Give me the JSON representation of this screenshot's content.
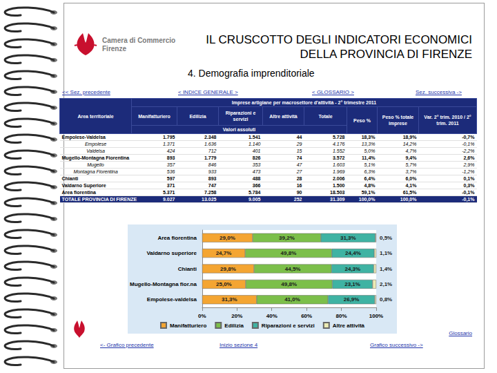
{
  "header": {
    "logo": [
      "Camera di Commercio",
      "Firenze"
    ],
    "title": [
      "IL CRUSCOTTO DEGLI INDICATORI ECONOMICI",
      "DELLA PROVINCIA DI FIRENZE"
    ],
    "subtitle": "4. Demografia imprenditoriale"
  },
  "nav": [
    "<< Sez. precedente",
    "< INDICE GENERALE >",
    "< GLOSSARIO >",
    "Sez. successiva ->"
  ],
  "table": {
    "title": "Imprese artigiane per macrosettore d'attività - 2° trimestre 2011",
    "group_label": "Valori assoluti",
    "columns": [
      "Area territoriale",
      "Manifatturiero",
      "Edilizia",
      "Riparazioni e servizi",
      "Altre attività",
      "Totale",
      "Peso %",
      "Peso % totale imprese",
      "Var. 2° trim. 2010 / 2° trim. 2011"
    ],
    "rows": [
      {
        "cells": [
          "Empolese-Valdelsa",
          "1.795",
          "2.348",
          "1.541",
          "44",
          "5.728",
          "18,3%",
          "18,9%",
          "-0,7%"
        ],
        "parts": [
          {
            "cells": [
              "Empolese",
              "1.371",
              "1.636",
              "1.140",
              "29",
              "4.176",
              "13,3%",
              "14,2%",
              "-0,1%"
            ]
          },
          {
            "cells": [
              "Valdelsa",
              "424",
              "712",
              "401",
              "15",
              "1.552",
              "5,0%",
              "4,7%",
              "-2,2%"
            ]
          }
        ]
      },
      {
        "cells": [
          "Mugello-Montagna Fiorentina",
          "893",
          "1.779",
          "826",
          "74",
          "3.572",
          "11,4%",
          "9,4%",
          "2,6%"
        ],
        "parts": [
          {
            "cells": [
              "Mugello",
              "357",
              "846",
              "353",
              "47",
              "1.603",
              "5,1%",
              "5,7%",
              "2,9%"
            ]
          },
          {
            "cells": [
              "Montagna Fiorentina",
              "536",
              "933",
              "473",
              "27",
              "1.969",
              "6,3%",
              "3,7%",
              "-1,2%"
            ]
          }
        ]
      },
      {
        "cells": [
          "Chianti",
          "597",
          "893",
          "488",
          "28",
          "2.006",
          "6,4%",
          "6,0%",
          "0,1%"
        ]
      },
      {
        "cells": [
          "Valdarno Superiore",
          "371",
          "747",
          "366",
          "16",
          "1.500",
          "4,8%",
          "4,1%",
          "0,3%"
        ]
      },
      {
        "cells": [
          "Area fiorentina",
          "5.371",
          "7.258",
          "5.784",
          "90",
          "18.503",
          "59,1%",
          "61,5%",
          "-0,1%"
        ]
      }
    ],
    "total": {
      "cells": [
        "TOTALE PROVINCIA DI FIRENZE",
        "9.027",
        "13.025",
        "9.005",
        "252",
        "31.309",
        "100,0%",
        "100,0%",
        "-0,1%"
      ]
    }
  },
  "chart_data": {
    "type": "bar",
    "orientation": "horizontal",
    "stacked": true,
    "data_labels": true,
    "legend": "bottom",
    "grid": false,
    "categories": [
      "Area fiorentina",
      "Valdarno superiore",
      "Chianti",
      "Mugello-Montagna fior.na",
      "Empolese-valdelsa"
    ],
    "series": [
      {
        "name": "Manifatturiero",
        "color": "#f4a532",
        "values": [
          29.0,
          24.7,
          29.8,
          25.0,
          31.3
        ],
        "value_labels": [
          "29,0%",
          "24,7%",
          "29,8%",
          "25,0%",
          "31,3%"
        ]
      },
      {
        "name": "Edilizia",
        "color": "#7cbf4a",
        "values": [
          39.2,
          49.8,
          44.5,
          49.8,
          41.0
        ],
        "value_labels": [
          "39,2%",
          "49,8%",
          "44,5%",
          "49,8%",
          "41,0%"
        ]
      },
      {
        "name": "Riparazioni e servizi",
        "color": "#3fb3a3",
        "values": [
          31.3,
          24.4,
          24.3,
          23.1,
          26.9
        ],
        "value_labels": [
          "31,3%",
          "24,4%",
          "24,3%",
          "23,1%",
          "26,9%"
        ]
      },
      {
        "name": "Altre attività",
        "color": "#ecebb4",
        "values": [
          0.5,
          1.1,
          1.4,
          2.1,
          0.8
        ],
        "value_labels": [
          "0,5%",
          "1,1%",
          "1,4%",
          "2,1%",
          "0,8%"
        ]
      }
    ],
    "xlim": [
      0,
      100
    ],
    "xticks": [
      {
        "value": 0,
        "label": "0%"
      },
      {
        "value": 20,
        "label": "20%"
      },
      {
        "value": 40,
        "label": "40%"
      },
      {
        "value": 60,
        "label": "60%"
      },
      {
        "value": 80,
        "label": "80%"
      },
      {
        "value": 100,
        "label": "100%"
      }
    ]
  },
  "footer": {
    "glossary": "Glossario",
    "links": [
      "<- Grafico precedente",
      "Inizio sezione 4",
      "Grafico successivo ->"
    ]
  }
}
